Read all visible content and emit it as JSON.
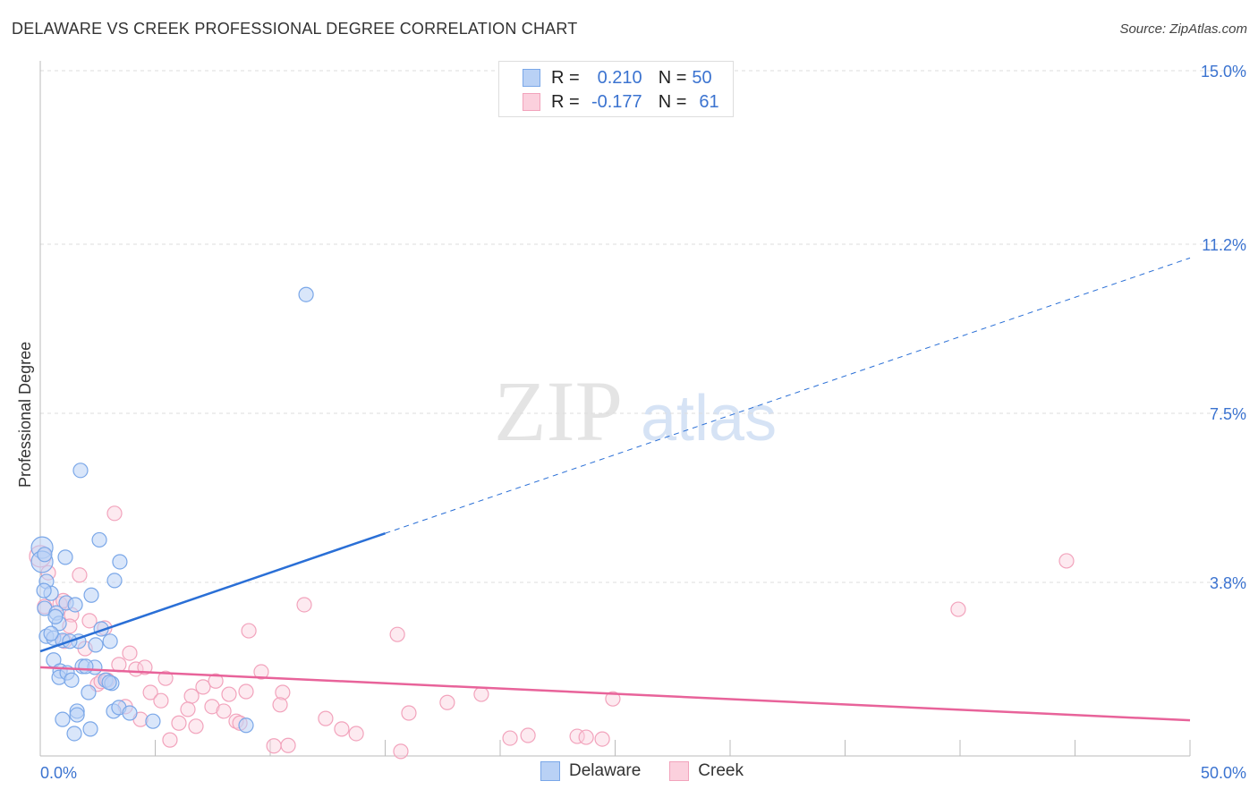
{
  "title": "DELAWARE VS CREEK PROFESSIONAL DEGREE CORRELATION CHART",
  "source": "Source: ZipAtlas.com",
  "watermark": "ZIPatlas",
  "colors": {
    "delaware": "#7aa7e8",
    "delaware_line": "#2a6fd6",
    "creek": "#f2a3bc",
    "creek_line": "#e8639a",
    "accent": "#3b73d0"
  },
  "legend": {
    "rows": [
      {
        "r_label": "R =",
        "r_value": "0.210",
        "n_label": "N =",
        "n_value": "50"
      },
      {
        "r_label": "R =",
        "r_value": "-0.177",
        "n_label": "N =",
        "n_value": "61"
      }
    ]
  },
  "chart_data": {
    "type": "scatter",
    "title": "DELAWARE VS CREEK PROFESSIONAL DEGREE CORRELATION CHART",
    "xlabel": "",
    "ylabel": "Professional Degree",
    "xlim": [
      0,
      50
    ],
    "ylim": [
      0,
      15
    ],
    "x_tick_labels": [
      "0.0%",
      "50.0%"
    ],
    "y_ticks": [
      3.8,
      7.5,
      11.2,
      15.0
    ],
    "y_tick_labels": [
      "3.8%",
      "7.5%",
      "11.2%",
      "15.0%"
    ],
    "grid": true,
    "legend_position": "bottom",
    "series": [
      {
        "name": "Delaware",
        "trend": {
          "x0": 0,
          "y0": 2.29,
          "x1": 50,
          "y1": 10.9,
          "solid_until": 15
        },
        "points": [
          [
            11.56,
            10.1
          ],
          [
            1.75,
            6.25
          ],
          [
            2.57,
            4.73
          ],
          [
            3.46,
            4.25
          ],
          [
            1.09,
            4.35
          ],
          [
            3.23,
            3.84
          ],
          [
            2.22,
            3.52
          ],
          [
            0.08,
            4.56
          ],
          [
            0.08,
            4.25
          ],
          [
            0.27,
            3.82
          ],
          [
            0.47,
            3.56
          ],
          [
            0.19,
            3.23
          ],
          [
            1.13,
            3.35
          ],
          [
            1.52,
            3.31
          ],
          [
            0.7,
            3.13
          ],
          [
            0.82,
            2.9
          ],
          [
            0.27,
            2.62
          ],
          [
            0.58,
            2.58
          ],
          [
            0.97,
            2.53
          ],
          [
            1.67,
            2.51
          ],
          [
            3.04,
            2.51
          ],
          [
            2.41,
            2.43
          ],
          [
            2.65,
            2.78
          ],
          [
            0.58,
            2.1
          ],
          [
            0.86,
            1.86
          ],
          [
            0.82,
            1.72
          ],
          [
            1.17,
            1.82
          ],
          [
            1.36,
            1.66
          ],
          [
            1.83,
            1.96
          ],
          [
            2.37,
            1.94
          ],
          [
            2.84,
            1.66
          ],
          [
            3.11,
            1.59
          ],
          [
            2.1,
            1.39
          ],
          [
            3.19,
            0.98
          ],
          [
            3.42,
            1.06
          ],
          [
            3.89,
            0.94
          ],
          [
            1.6,
            0.98
          ],
          [
            1.6,
            0.9
          ],
          [
            0.97,
            0.8
          ],
          [
            4.9,
            0.76
          ],
          [
            8.95,
            0.67
          ],
          [
            2.18,
            0.59
          ],
          [
            1.48,
            0.49
          ],
          [
            0.19,
            4.41
          ],
          [
            0.47,
            2.68
          ],
          [
            1.28,
            2.51
          ],
          [
            0.16,
            3.62
          ],
          [
            0.66,
            3.05
          ],
          [
            3.0,
            1.61
          ],
          [
            1.98,
            1.96
          ]
        ]
      },
      {
        "name": "Creek",
        "trend": {
          "x0": 0,
          "y0": 1.94,
          "x1": 50,
          "y1": 0.78,
          "solid_until": 50
        },
        "points": [
          [
            3.23,
            5.31
          ],
          [
            1.71,
            3.96
          ],
          [
            0.35,
            4.01
          ],
          [
            0.86,
            3.33
          ],
          [
            1.36,
            3.09
          ],
          [
            0.19,
            3.27
          ],
          [
            2.14,
            2.96
          ],
          [
            2.8,
            2.8
          ],
          [
            1.28,
            2.84
          ],
          [
            1.05,
            2.51
          ],
          [
            1.95,
            2.35
          ],
          [
            3.89,
            2.25
          ],
          [
            3.42,
            2.0
          ],
          [
            4.16,
            1.9
          ],
          [
            4.55,
            1.94
          ],
          [
            5.45,
            1.7
          ],
          [
            4.79,
            1.39
          ],
          [
            5.25,
            1.21
          ],
          [
            6.58,
            1.31
          ],
          [
            7.08,
            1.51
          ],
          [
            7.63,
            1.64
          ],
          [
            8.21,
            1.35
          ],
          [
            8.95,
            1.41
          ],
          [
            9.61,
            1.84
          ],
          [
            10.54,
            1.39
          ],
          [
            10.43,
            1.12
          ],
          [
            7.47,
            1.08
          ],
          [
            7.98,
            0.98
          ],
          [
            6.42,
            1.02
          ],
          [
            6.03,
            0.72
          ],
          [
            6.77,
            0.65
          ],
          [
            8.52,
            0.76
          ],
          [
            8.68,
            0.72
          ],
          [
            4.36,
            0.8
          ],
          [
            5.64,
            0.35
          ],
          [
            10.16,
            0.22
          ],
          [
            10.78,
            0.23
          ],
          [
            12.41,
            0.82
          ],
          [
            13.11,
            0.59
          ],
          [
            13.74,
            0.49
          ],
          [
            15.68,
            0.1
          ],
          [
            16.03,
            0.94
          ],
          [
            17.7,
            1.17
          ],
          [
            19.18,
            1.35
          ],
          [
            20.43,
            0.39
          ],
          [
            21.21,
            0.45
          ],
          [
            23.35,
            0.43
          ],
          [
            23.74,
            0.41
          ],
          [
            24.44,
            0.37
          ],
          [
            24.9,
            1.25
          ],
          [
            9.07,
            2.74
          ],
          [
            11.48,
            3.31
          ],
          [
            15.53,
            2.66
          ],
          [
            39.92,
            3.21
          ],
          [
            44.63,
            4.27
          ],
          [
            2.49,
            1.57
          ],
          [
            2.65,
            1.63
          ],
          [
            3.7,
            1.08
          ],
          [
            2.92,
            1.66
          ],
          [
            0.0,
            4.37
          ],
          [
            1.0,
            3.4
          ]
        ]
      }
    ]
  }
}
